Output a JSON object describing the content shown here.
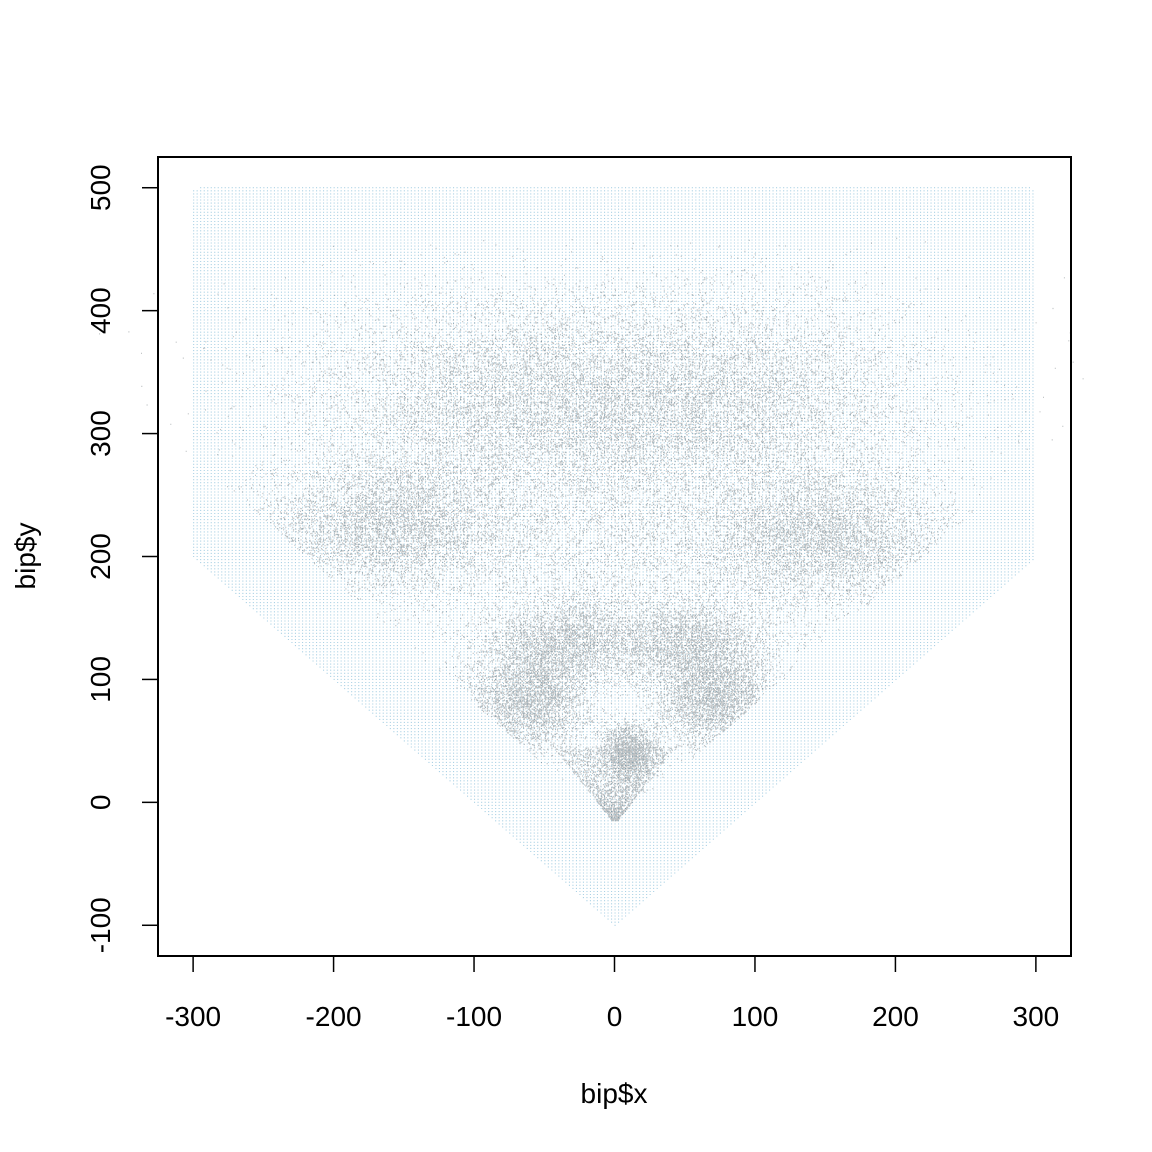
{
  "chart_data": {
    "type": "scatter",
    "title": "",
    "xlabel": "bip$x",
    "ylabel": "bip$y",
    "xlim": [
      -325,
      325
    ],
    "ylim": [
      -125,
      525
    ],
    "x_ticks": [
      -300,
      -200,
      -100,
      0,
      100,
      200,
      300
    ],
    "x_tick_labels": [
      "-300",
      "-200",
      "-100",
      "0",
      "100",
      "200",
      "300"
    ],
    "y_ticks": [
      -100,
      0,
      100,
      200,
      300,
      400,
      500
    ],
    "y_tick_labels": [
      "-100",
      "0",
      "100",
      "200",
      "300",
      "400",
      "500"
    ],
    "grid": false,
    "legend": "none",
    "series": [
      {
        "role": "field grid",
        "color": "#9ecae1",
        "polygon": [
          [
            -300,
            200
          ],
          [
            -300,
            500
          ],
          [
            300,
            500
          ],
          [
            300,
            200
          ],
          [
            0,
            -100
          ]
        ]
      },
      {
        "role": "batted balls (density clusters)",
        "color": "#0b1a22",
        "clusters": [
          {
            "center": [
              -160,
              225
            ],
            "spread": [
              45,
              28
            ],
            "weight": 3
          },
          {
            "center": [
              150,
              215
            ],
            "spread": [
              45,
              28
            ],
            "weight": 3
          },
          {
            "center": [
              0,
              320
            ],
            "spread": [
              95,
              45
            ],
            "weight": 5
          },
          {
            "center": [
              -95,
              330
            ],
            "spread": [
              70,
              45
            ],
            "weight": 2
          },
          {
            "center": [
              95,
              330
            ],
            "spread": [
              70,
              45
            ],
            "weight": 2
          },
          {
            "center": [
              0,
              200
            ],
            "spread": [
              70,
              40
            ],
            "weight": 1.5
          },
          {
            "center": [
              -60,
              85
            ],
            "spread": [
              22,
              22
            ],
            "weight": 2
          },
          {
            "center": [
              70,
              85
            ],
            "spread": [
              22,
              22
            ],
            "weight": 2
          },
          {
            "center": [
              -35,
              130
            ],
            "spread": [
              30,
              18
            ],
            "weight": 1.5
          },
          {
            "center": [
              50,
              130
            ],
            "spread": [
              30,
              18
            ],
            "weight": 1.5
          },
          {
            "center": [
              10,
              40
            ],
            "spread": [
              10,
              12
            ],
            "weight": 1
          }
        ]
      }
    ]
  }
}
